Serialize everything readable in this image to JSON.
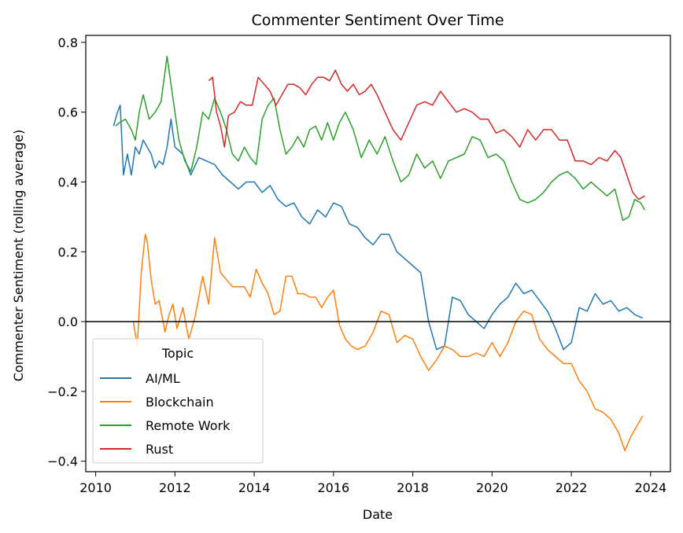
{
  "chart_data": {
    "type": "line",
    "title": "Commenter Sentiment Over Time",
    "xlabel": "Date",
    "ylabel": "Commenter Sentiment (rolling average)",
    "xlim": [
      2009.75,
      2024.5
    ],
    "ylim": [
      -0.43,
      0.82
    ],
    "x_ticks": [
      2010,
      2012,
      2014,
      2016,
      2018,
      2020,
      2022,
      2024
    ],
    "y_ticks": [
      -0.4,
      -0.2,
      0.0,
      0.2,
      0.4,
      0.6,
      0.8
    ],
    "y_tick_labels": [
      "−0.4",
      "−0.2",
      "0.0",
      "0.2",
      "0.4",
      "0.6",
      "0.8"
    ],
    "reference_line": {
      "y": 0.0,
      "color": "#000000"
    },
    "legend": {
      "title": "Topic",
      "placement": "lower-left"
    },
    "series": [
      {
        "name": "AI/ML",
        "color": "#1f77b4",
        "x": [
          2010.45,
          2010.55,
          2010.62,
          2010.7,
          2010.8,
          2010.9,
          2011.0,
          2011.1,
          2011.2,
          2011.3,
          2011.4,
          2011.5,
          2011.6,
          2011.7,
          2011.8,
          2011.9,
          2012.0,
          2012.2,
          2012.4,
          2012.6,
          2012.8,
          2013.0,
          2013.2,
          2013.4,
          2013.6,
          2013.8,
          2014.0,
          2014.2,
          2014.4,
          2014.6,
          2014.8,
          2015.0,
          2015.2,
          2015.4,
          2015.6,
          2015.8,
          2016.0,
          2016.2,
          2016.4,
          2016.6,
          2016.8,
          2017.0,
          2017.2,
          2017.4,
          2017.6,
          2017.8,
          2018.0,
          2018.2,
          2018.4,
          2018.6,
          2018.8,
          2019.0,
          2019.2,
          2019.4,
          2019.6,
          2019.8,
          2020.0,
          2020.2,
          2020.4,
          2020.6,
          2020.8,
          2021.0,
          2021.2,
          2021.4,
          2021.6,
          2021.8,
          2022.0,
          2022.2,
          2022.4,
          2022.6,
          2022.8,
          2023.0,
          2023.2,
          2023.4,
          2023.6,
          2023.8
        ],
        "y": [
          0.56,
          0.6,
          0.62,
          0.42,
          0.48,
          0.42,
          0.5,
          0.48,
          0.52,
          0.5,
          0.48,
          0.44,
          0.46,
          0.45,
          0.5,
          0.58,
          0.5,
          0.48,
          0.42,
          0.47,
          0.46,
          0.45,
          0.42,
          0.4,
          0.38,
          0.4,
          0.4,
          0.37,
          0.39,
          0.35,
          0.33,
          0.34,
          0.3,
          0.28,
          0.32,
          0.3,
          0.34,
          0.33,
          0.28,
          0.27,
          0.24,
          0.22,
          0.25,
          0.25,
          0.2,
          0.18,
          0.16,
          0.14,
          0.0,
          -0.08,
          -0.07,
          0.07,
          0.06,
          0.02,
          0.0,
          -0.02,
          0.02,
          0.05,
          0.07,
          0.11,
          0.08,
          0.09,
          0.06,
          0.03,
          -0.02,
          -0.08,
          -0.06,
          0.04,
          0.03,
          0.08,
          0.05,
          0.06,
          0.03,
          0.04,
          0.02,
          0.01
        ]
      },
      {
        "name": "Blockchain",
        "color": "#ff7f0e",
        "x": [
          2010.95,
          2011.05,
          2011.15,
          2011.25,
          2011.3,
          2011.4,
          2011.5,
          2011.6,
          2011.75,
          2011.85,
          2011.95,
          2012.05,
          2012.2,
          2012.35,
          2012.5,
          2012.6,
          2012.7,
          2012.85,
          2013.0,
          2013.15,
          2013.3,
          2013.45,
          2013.6,
          2013.75,
          2013.9,
          2014.05,
          2014.2,
          2014.35,
          2014.5,
          2014.65,
          2014.8,
          2014.95,
          2015.1,
          2015.25,
          2015.4,
          2015.55,
          2015.7,
          2015.85,
          2016.0,
          2016.15,
          2016.3,
          2016.45,
          2016.6,
          2016.8,
          2017.0,
          2017.2,
          2017.4,
          2017.6,
          2017.8,
          2018.0,
          2018.2,
          2018.4,
          2018.6,
          2018.8,
          2019.0,
          2019.2,
          2019.4,
          2019.6,
          2019.8,
          2020.0,
          2020.2,
          2020.4,
          2020.6,
          2020.8,
          2021.0,
          2021.2,
          2021.4,
          2021.6,
          2021.8,
          2022.0,
          2022.2,
          2022.4,
          2022.6,
          2022.8,
          2023.0,
          2023.2,
          2023.35,
          2023.5,
          2023.65,
          2023.8
        ],
        "y": [
          0.0,
          -0.07,
          0.14,
          0.25,
          0.23,
          0.12,
          0.05,
          0.06,
          -0.03,
          0.02,
          0.05,
          -0.02,
          0.04,
          -0.05,
          0.01,
          0.07,
          0.13,
          0.05,
          0.24,
          0.14,
          0.12,
          0.1,
          0.1,
          0.1,
          0.07,
          0.15,
          0.11,
          0.08,
          0.02,
          0.03,
          0.13,
          0.13,
          0.08,
          0.08,
          0.07,
          0.07,
          0.04,
          0.07,
          0.09,
          -0.01,
          -0.05,
          -0.07,
          -0.08,
          -0.07,
          -0.03,
          0.03,
          0.02,
          -0.06,
          -0.04,
          -0.05,
          -0.1,
          -0.14,
          -0.11,
          -0.07,
          -0.08,
          -0.1,
          -0.1,
          -0.09,
          -0.1,
          -0.06,
          -0.1,
          -0.06,
          0.0,
          0.03,
          0.02,
          -0.05,
          -0.08,
          -0.1,
          -0.12,
          -0.12,
          -0.17,
          -0.2,
          -0.25,
          -0.26,
          -0.28,
          -0.32,
          -0.37,
          -0.33,
          -0.3,
          -0.27
        ]
      },
      {
        "name": "Remote Work",
        "color": "#2ca02c",
        "x": [
          2010.5,
          2010.6,
          2010.75,
          2010.9,
          2011.0,
          2011.1,
          2011.2,
          2011.35,
          2011.5,
          2011.65,
          2011.8,
          2011.95,
          2012.1,
          2012.25,
          2012.4,
          2012.55,
          2012.7,
          2012.85,
          2013.0,
          2013.15,
          2013.3,
          2013.45,
          2013.6,
          2013.75,
          2013.9,
          2014.05,
          2014.2,
          2014.35,
          2014.5,
          2014.65,
          2014.8,
          2014.95,
          2015.1,
          2015.25,
          2015.4,
          2015.55,
          2015.7,
          2015.85,
          2016.0,
          2016.15,
          2016.3,
          2016.5,
          2016.7,
          2016.9,
          2017.1,
          2017.3,
          2017.5,
          2017.7,
          2017.9,
          2018.1,
          2018.3,
          2018.5,
          2018.7,
          2018.9,
          2019.1,
          2019.3,
          2019.5,
          2019.7,
          2019.9,
          2020.1,
          2020.3,
          2020.5,
          2020.7,
          2020.9,
          2021.1,
          2021.3,
          2021.5,
          2021.7,
          2021.9,
          2022.1,
          2022.3,
          2022.5,
          2022.7,
          2022.9,
          2023.1,
          2023.3,
          2023.45,
          2023.6,
          2023.75,
          2023.85
        ],
        "y": [
          0.56,
          0.57,
          0.58,
          0.55,
          0.52,
          0.6,
          0.65,
          0.58,
          0.6,
          0.63,
          0.76,
          0.64,
          0.52,
          0.46,
          0.43,
          0.5,
          0.6,
          0.58,
          0.64,
          0.6,
          0.55,
          0.48,
          0.46,
          0.5,
          0.47,
          0.45,
          0.58,
          0.62,
          0.64,
          0.55,
          0.48,
          0.5,
          0.53,
          0.5,
          0.55,
          0.56,
          0.52,
          0.57,
          0.52,
          0.57,
          0.6,
          0.55,
          0.47,
          0.52,
          0.48,
          0.53,
          0.46,
          0.4,
          0.42,
          0.48,
          0.44,
          0.46,
          0.41,
          0.46,
          0.47,
          0.48,
          0.53,
          0.52,
          0.47,
          0.48,
          0.46,
          0.4,
          0.35,
          0.34,
          0.35,
          0.37,
          0.4,
          0.42,
          0.43,
          0.41,
          0.38,
          0.4,
          0.38,
          0.36,
          0.38,
          0.29,
          0.3,
          0.35,
          0.34,
          0.32
        ]
      },
      {
        "name": "Rust",
        "color": "#d62728",
        "x": [
          2012.85,
          2012.95,
          2013.05,
          2013.15,
          2013.25,
          2013.35,
          2013.5,
          2013.65,
          2013.8,
          2013.95,
          2014.1,
          2014.25,
          2014.4,
          2014.55,
          2014.7,
          2014.85,
          2015.0,
          2015.15,
          2015.3,
          2015.45,
          2015.6,
          2015.75,
          2015.9,
          2016.05,
          2016.2,
          2016.35,
          2016.5,
          2016.65,
          2016.8,
          2016.95,
          2017.1,
          2017.3,
          2017.5,
          2017.7,
          2017.9,
          2018.1,
          2018.3,
          2018.5,
          2018.7,
          2018.9,
          2019.1,
          2019.3,
          2019.5,
          2019.7,
          2019.9,
          2020.1,
          2020.3,
          2020.5,
          2020.7,
          2020.9,
          2021.1,
          2021.3,
          2021.5,
          2021.7,
          2021.9,
          2022.1,
          2022.3,
          2022.5,
          2022.7,
          2022.9,
          2023.1,
          2023.25,
          2023.4,
          2023.55,
          2023.7,
          2023.85
        ],
        "y": [
          0.69,
          0.7,
          0.6,
          0.56,
          0.5,
          0.59,
          0.6,
          0.63,
          0.62,
          0.62,
          0.7,
          0.68,
          0.66,
          0.62,
          0.65,
          0.68,
          0.68,
          0.67,
          0.65,
          0.68,
          0.7,
          0.7,
          0.69,
          0.72,
          0.68,
          0.66,
          0.68,
          0.65,
          0.66,
          0.68,
          0.65,
          0.6,
          0.55,
          0.52,
          0.57,
          0.62,
          0.63,
          0.62,
          0.66,
          0.63,
          0.6,
          0.61,
          0.6,
          0.58,
          0.58,
          0.54,
          0.55,
          0.53,
          0.5,
          0.55,
          0.52,
          0.55,
          0.55,
          0.52,
          0.52,
          0.46,
          0.46,
          0.45,
          0.47,
          0.46,
          0.49,
          0.47,
          0.42,
          0.37,
          0.35,
          0.36
        ]
      }
    ]
  }
}
